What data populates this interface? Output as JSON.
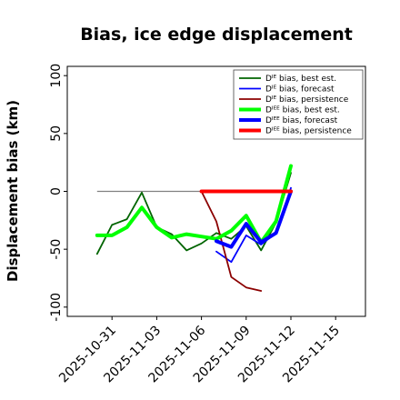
{
  "chart_data": {
    "type": "line",
    "title": "Bias, ice edge displacement",
    "xlabel": "",
    "ylabel": "Displacement bias (km)",
    "x_ticks": [
      "2025-10-31",
      "2025-11-03",
      "2025-11-06",
      "2025-11-09",
      "2025-11-12",
      "2025-11-15"
    ],
    "x_tick_colors": [
      "#000000",
      "#000000",
      "#228b22",
      "#000000",
      "#000000",
      "#000000"
    ],
    "xlim": [
      "2025-10-28",
      "2025-11-17"
    ],
    "ylim": [
      -108,
      108
    ],
    "y_ticks": [
      -100,
      -50,
      0,
      50,
      100
    ],
    "grid": false,
    "legend_position": "top-right",
    "reference_line": {
      "y": 0,
      "x_start": "2025-10-30",
      "x_end": "2025-11-12",
      "color": "#808080"
    },
    "series": [
      {
        "name": "Dᴵᴱ bias, best est.",
        "color": "#006400",
        "width": 1.8,
        "x": [
          "2025-10-30",
          "2025-10-31",
          "2025-11-01",
          "2025-11-02",
          "2025-11-03",
          "2025-11-04",
          "2025-11-05",
          "2025-11-06",
          "2025-11-07",
          "2025-11-08",
          "2025-11-09",
          "2025-11-10",
          "2025-11-11",
          "2025-11-12"
        ],
        "values": [
          -54,
          -29,
          -24,
          -1,
          -31,
          -37,
          -51,
          -45,
          -36,
          -41,
          -30,
          -51,
          -27,
          16
        ]
      },
      {
        "name": "Dᴵᴱ bias, forecast",
        "color": "#0000ff",
        "width": 1.8,
        "x": [
          "2025-11-07",
          "2025-11-08",
          "2025-11-09",
          "2025-11-10",
          "2025-11-11",
          "2025-11-12"
        ],
        "values": [
          -52,
          -61,
          -38,
          -46,
          -36,
          3
        ]
      },
      {
        "name": "Dᴵᴱ bias, persistence",
        "color": "#8b0000",
        "width": 1.8,
        "x": [
          "2025-11-06",
          "2025-11-07",
          "2025-11-08",
          "2025-11-09",
          "2025-11-10"
        ],
        "values": [
          0,
          -26,
          -74,
          -83,
          -86
        ]
      },
      {
        "name": "Dᴵᴱᴱ bias, best est.",
        "color": "#00ff00",
        "width": 4,
        "x": [
          "2025-10-30",
          "2025-10-31",
          "2025-11-01",
          "2025-11-02",
          "2025-11-03",
          "2025-11-04",
          "2025-11-05",
          "2025-11-06",
          "2025-11-07",
          "2025-11-08",
          "2025-11-09",
          "2025-11-10",
          "2025-11-11",
          "2025-11-12"
        ],
        "values": [
          -38,
          -38,
          -31,
          -14,
          -31,
          -40,
          -37,
          -39,
          -41,
          -34,
          -21,
          -44,
          -26,
          22
        ]
      },
      {
        "name": "Dᴵᴱᴱ bias, forecast",
        "color": "#0000ff",
        "width": 4,
        "x": [
          "2025-11-07",
          "2025-11-08",
          "2025-11-09",
          "2025-11-10",
          "2025-11-11",
          "2025-11-12"
        ],
        "values": [
          -43,
          -48,
          -28,
          -44,
          -36,
          0
        ]
      },
      {
        "name": "Dᴵᴱᴱ bias, persistence",
        "color": "#ff0000",
        "width": 4,
        "x": [
          "2025-11-06",
          "2025-11-07",
          "2025-11-08",
          "2025-11-09",
          "2025-11-10",
          "2025-11-11",
          "2025-11-12"
        ],
        "values": [
          0,
          0,
          0,
          0,
          0,
          0,
          0
        ]
      }
    ]
  }
}
